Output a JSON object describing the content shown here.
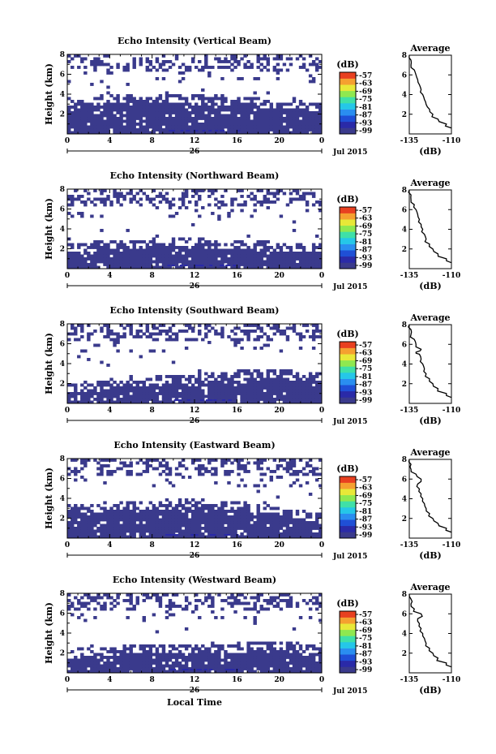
{
  "figure": {
    "xlabel": "Local Time",
    "date_suffix": "Jul 2015",
    "day_label": "26",
    "colorbar_unit": "(dB)",
    "colorbar_ticks": [
      "-57",
      "-63",
      "-69",
      "-75",
      "-81",
      "-87",
      "-93",
      "-99"
    ],
    "colorbar_colors": [
      "#3a3a8c",
      "#2a2aa8",
      "#1f4fd6",
      "#2a8ef0",
      "#25c7e8",
      "#3fe0a8",
      "#8fe850",
      "#e8e838",
      "#f5a030",
      "#e84020"
    ]
  },
  "chart_data": [
    {
      "type": "heatmap",
      "title": "Echo Intensity (Vertical Beam)",
      "ylabel": "Height (km)",
      "xlim": [
        0,
        24
      ],
      "ylim": [
        0,
        8
      ],
      "xticks": [
        "0",
        "4",
        "8",
        "12",
        "16",
        "20",
        "0"
      ],
      "yticks": [
        "2",
        "4",
        "6",
        "8"
      ],
      "cloud_top_km": [
        3.3,
        3.4,
        3.5,
        3.6,
        3.7,
        3.7,
        3.6,
        3.5,
        3.4,
        3.2,
        3.0,
        2.9,
        2.8
      ],
      "average_profile": {
        "title": "Average",
        "xlabel": "(dB)",
        "xlim": [
          -135,
          -110
        ],
        "xticks": [
          "-135",
          "-110"
        ],
        "ylim": [
          0,
          8
        ],
        "yticks": [
          "2",
          "4",
          "6",
          "8"
        ],
        "height_km": [
          0.6,
          1.0,
          1.5,
          2.0,
          2.5,
          3.0,
          3.5,
          4.0,
          4.5,
          5.0,
          5.5,
          6.0,
          6.5,
          7.0,
          7.5,
          8.0
        ],
        "db": [
          -110,
          -113,
          -118,
          -121,
          -123,
          -125,
          -126,
          -127,
          -128,
          -129,
          -130,
          -131,
          -132,
          -134,
          -134,
          -135
        ]
      }
    },
    {
      "type": "heatmap",
      "title": "Echo Intensity (Northward Beam)",
      "ylabel": "Height (km)",
      "xlim": [
        0,
        24
      ],
      "ylim": [
        0,
        8
      ],
      "xticks": [
        "0",
        "4",
        "8",
        "12",
        "16",
        "20",
        "0"
      ],
      "yticks": [
        "2",
        "4",
        "6",
        "8"
      ],
      "cloud_top_km": [
        2.2,
        2.3,
        2.4,
        2.5,
        2.6,
        2.7,
        2.7,
        2.6,
        2.5,
        2.4,
        2.3,
        2.2,
        2.2
      ],
      "average_profile": {
        "title": "Average",
        "xlabel": "(dB)",
        "xlim": [
          -135,
          -110
        ],
        "xticks": [
          "-135",
          "-110"
        ],
        "ylim": [
          0,
          8
        ],
        "yticks": [
          "2",
          "4",
          "6",
          "8"
        ],
        "height_km": [
          0.6,
          1.0,
          1.5,
          2.0,
          2.5,
          3.0,
          3.5,
          4.0,
          4.5,
          5.0,
          5.5,
          6.0,
          6.5,
          7.0,
          7.5,
          8.0
        ],
        "db": [
          -110,
          -113,
          -118,
          -121,
          -123,
          -125,
          -126,
          -127,
          -128,
          -129,
          -130,
          -131,
          -132,
          -134,
          -134,
          -135
        ]
      }
    },
    {
      "type": "heatmap",
      "title": "Echo Intensity (Southward Beam)",
      "ylabel": "Height (km)",
      "xlim": [
        0,
        24
      ],
      "ylim": [
        0,
        8
      ],
      "xticks": [
        "0",
        "4",
        "8",
        "12",
        "16",
        "20",
        "0"
      ],
      "yticks": [
        "2",
        "4",
        "6",
        "8"
      ],
      "cloud_top_km": [
        1.6,
        1.8,
        2.0,
        2.2,
        2.3,
        2.4,
        2.6,
        2.8,
        2.9,
        3.0,
        3.0,
        2.8,
        2.6
      ],
      "average_profile": {
        "title": "Average",
        "xlabel": "(dB)",
        "xlim": [
          -135,
          -110
        ],
        "xticks": [
          "-135",
          "-110"
        ],
        "ylim": [
          0,
          8
        ],
        "yticks": [
          "2",
          "4",
          "6",
          "8"
        ],
        "height_km": [
          0.6,
          1.0,
          1.5,
          2.0,
          2.5,
          3.0,
          3.5,
          4.0,
          4.5,
          5.0,
          5.2,
          5.5,
          6.0,
          6.5,
          7.0,
          7.5,
          8.0
        ],
        "db": [
          -110,
          -113,
          -118,
          -121,
          -123,
          -125,
          -126,
          -127,
          -128,
          -129,
          -131,
          -128,
          -131,
          -132,
          -134,
          -134,
          -135
        ]
      }
    },
    {
      "type": "heatmap",
      "title": "Echo Intensity (Eastward Beam)",
      "ylabel": "Height (km)",
      "xlim": [
        0,
        24
      ],
      "ylim": [
        0,
        8
      ],
      "xticks": [
        "0",
        "4",
        "8",
        "12",
        "16",
        "20",
        "0"
      ],
      "yticks": [
        "2",
        "4",
        "6",
        "8"
      ],
      "cloud_top_km": [
        3.0,
        3.1,
        3.2,
        3.3,
        3.4,
        3.5,
        3.5,
        3.4,
        3.3,
        3.1,
        2.8,
        2.4,
        2.0
      ],
      "average_profile": {
        "title": "Average",
        "xlabel": "(dB)",
        "xlim": [
          -135,
          -110
        ],
        "xticks": [
          "-135",
          "-110"
        ],
        "ylim": [
          0,
          8
        ],
        "yticks": [
          "2",
          "4",
          "6",
          "8"
        ],
        "height_km": [
          0.6,
          1.0,
          1.5,
          2.0,
          2.5,
          3.0,
          3.5,
          4.0,
          4.5,
          5.0,
          5.5,
          6.0,
          6.5,
          7.0,
          7.5,
          8.0
        ],
        "db": [
          -110,
          -113,
          -118,
          -121,
          -123,
          -125,
          -126,
          -127,
          -128,
          -129,
          -130,
          -128,
          -131,
          -134,
          -134,
          -135
        ]
      }
    },
    {
      "type": "heatmap",
      "title": "Echo Intensity (Westward Beam)",
      "ylabel": "Height (km)",
      "xlim": [
        0,
        24
      ],
      "ylim": [
        0,
        8
      ],
      "xticks": [
        "0",
        "4",
        "8",
        "12",
        "16",
        "20",
        "0"
      ],
      "yticks": [
        "2",
        "4",
        "6",
        "8"
      ],
      "cloud_top_km": [
        2.0,
        2.1,
        2.3,
        2.4,
        2.5,
        2.6,
        2.6,
        2.5,
        2.6,
        2.7,
        2.8,
        2.6,
        2.4
      ],
      "average_profile": {
        "title": "Average",
        "xlabel": "(dB)",
        "xlim": [
          -135,
          -110
        ],
        "xticks": [
          "-135",
          "-110"
        ],
        "ylim": [
          0,
          8
        ],
        "yticks": [
          "2",
          "4",
          "6",
          "8"
        ],
        "height_km": [
          0.6,
          1.0,
          1.5,
          2.0,
          2.5,
          3.0,
          3.5,
          4.0,
          4.5,
          5.0,
          5.5,
          6.0,
          6.5,
          7.0,
          7.5,
          8.0
        ],
        "db": [
          -110,
          -113,
          -118,
          -121,
          -123,
          -125,
          -126,
          -127,
          -128,
          -129,
          -130,
          -128,
          -132,
          -134,
          -134,
          -135
        ]
      }
    }
  ]
}
